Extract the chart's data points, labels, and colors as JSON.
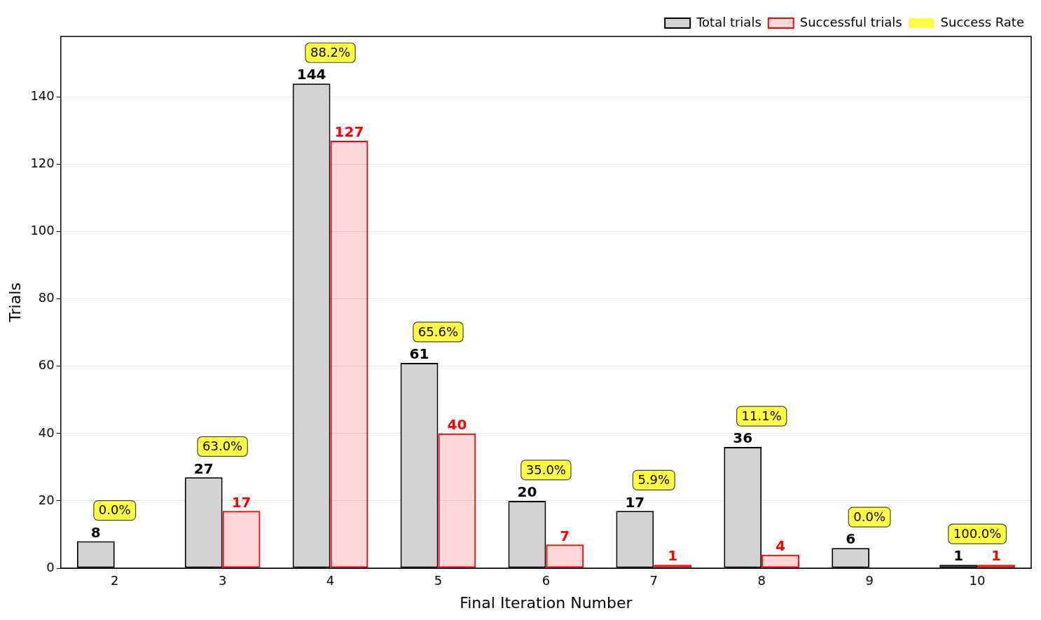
{
  "chart_data": {
    "type": "bar",
    "xlabel": "Final Iteration Number",
    "ylabel": "Trials",
    "categories": [
      "2",
      "3",
      "4",
      "5",
      "6",
      "7",
      "8",
      "9",
      "10"
    ],
    "series": [
      {
        "name": "Total trials",
        "color": "#d3d3d3",
        "values": [
          8,
          27,
          144,
          61,
          20,
          17,
          36,
          6,
          1
        ],
        "value_labels": [
          "8",
          "27",
          "144",
          "61",
          "20",
          "17",
          "36",
          "6",
          "1"
        ]
      },
      {
        "name": "Successful trials",
        "color": "#ff0000",
        "values": [
          0,
          17,
          127,
          40,
          7,
          1,
          4,
          0,
          1
        ],
        "value_labels": [
          null,
          "17",
          "127",
          "40",
          "7",
          "1",
          "4",
          null,
          "1"
        ]
      },
      {
        "name": "Success Rate",
        "color": "#ffff44",
        "type": "line",
        "values": [
          null,
          null,
          null,
          null,
          null,
          null,
          null,
          null,
          null
        ]
      }
    ],
    "annotations": [
      {
        "text": "0.0%",
        "x": "2",
        "y": 8
      },
      {
        "text": "63.0%",
        "x": "3",
        "y": 27
      },
      {
        "text": "88.2%",
        "x": "4",
        "y": 144
      },
      {
        "text": "65.6%",
        "x": "5",
        "y": 61
      },
      {
        "text": "35.0%",
        "x": "6",
        "y": 20
      },
      {
        "text": "5.9%",
        "x": "7",
        "y": 17
      },
      {
        "text": "11.1%",
        "x": "8",
        "y": 36
      },
      {
        "text": "0.0%",
        "x": "9",
        "y": 6
      },
      {
        "text": "100.0%",
        "x": "10",
        "y": 1
      }
    ],
    "ylim": [
      0,
      158
    ],
    "yticks": [
      0,
      20,
      40,
      60,
      80,
      100,
      120,
      140
    ],
    "grid": "y",
    "legend": "top right"
  }
}
